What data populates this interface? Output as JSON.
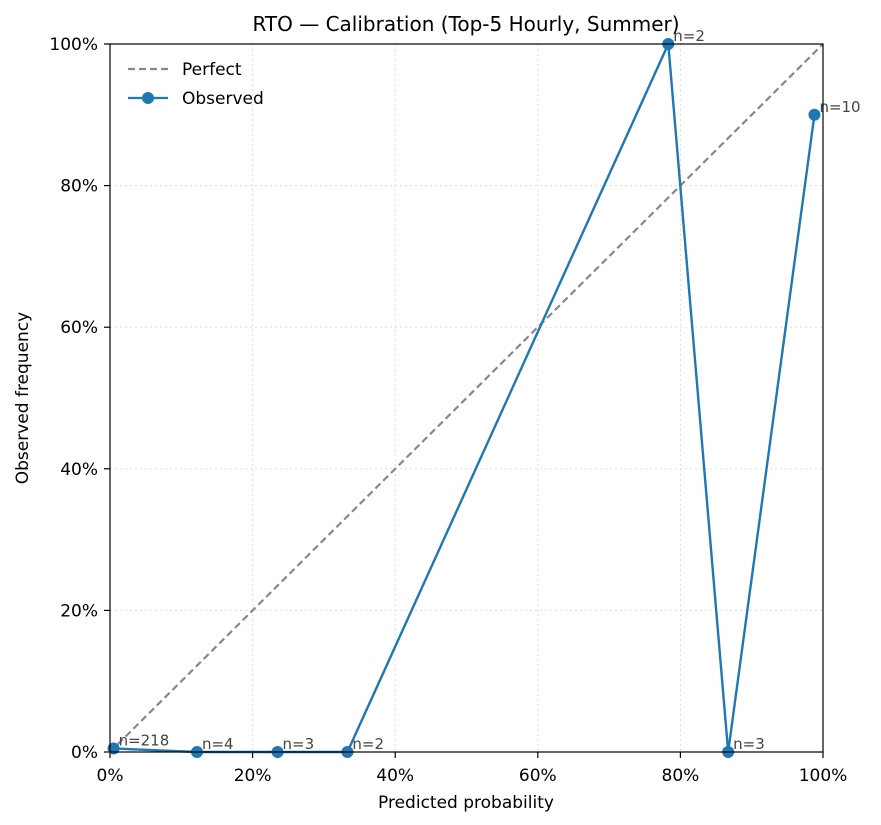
{
  "chart_data": {
    "type": "line",
    "title": "RTO — Calibration (Top-5 Hourly, Summer)",
    "xlabel": "Predicted probability",
    "ylabel": "Observed frequency",
    "xlim": [
      0,
      1
    ],
    "ylim": [
      0,
      1
    ],
    "x_ticks": [
      0,
      0.2,
      0.4,
      0.6,
      0.8,
      1.0
    ],
    "y_ticks": [
      0,
      0.2,
      0.4,
      0.6,
      0.8,
      1.0
    ],
    "x_tick_labels": [
      "0%",
      "20%",
      "40%",
      "60%",
      "80%",
      "100%"
    ],
    "y_tick_labels": [
      "0%",
      "20%",
      "40%",
      "60%",
      "80%",
      "100%"
    ],
    "grid": true,
    "legend_position": "top-left",
    "series": [
      {
        "name": "Perfect",
        "style": "dashed",
        "color": "#888888",
        "x": [
          0,
          1
        ],
        "y": [
          0,
          1
        ]
      },
      {
        "name": "Observed",
        "style": "solid-markers",
        "color": "#1f77b4",
        "x": [
          0.005,
          0.122,
          0.235,
          0.333,
          0.783,
          0.867,
          0.988
        ],
        "y": [
          0.005,
          0.0,
          0.0,
          0.0,
          1.0,
          0.0,
          0.9
        ],
        "labels": [
          "n=218",
          "n=4",
          "n=3",
          "n=2",
          "n=2",
          "n=3",
          "n=10"
        ]
      }
    ]
  }
}
